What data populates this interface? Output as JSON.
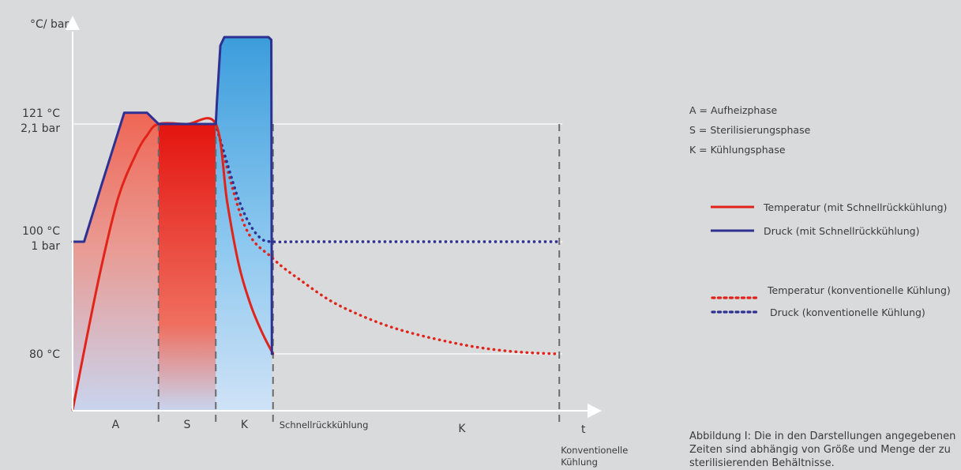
{
  "chart_data": {
    "type": "line",
    "y_axis_label": "°C/ bar",
    "x_axis_label": "t",
    "y_ticks": [
      {
        "value": 121,
        "lines": [
          "121 °C",
          "2,1 bar"
        ]
      },
      {
        "value": 100,
        "lines": [
          "100 °C",
          "1 bar"
        ]
      },
      {
        "value": 80,
        "lines": [
          "80 °C"
        ]
      }
    ],
    "phases": [
      {
        "label": "A",
        "start": 0,
        "end": 15
      },
      {
        "label": "S",
        "start": 15,
        "end": 25
      },
      {
        "label": "K",
        "start": 25,
        "end": 35
      }
    ],
    "phase_labels_extra": [
      {
        "label": "Schnellrückkühlung",
        "at": 35
      },
      {
        "label": "K",
        "at": 68
      }
    ],
    "conventional_end_label": [
      "Konventionelle",
      "Kühlung"
    ],
    "conventional_end_x": 85,
    "series": [
      {
        "name": "Temperatur (mit Schnellrückkühlung)",
        "color": "#e2231a",
        "style": "solid",
        "x": [
          0,
          2,
          5,
          8,
          11,
          13,
          15,
          20,
          25,
          27,
          29,
          31,
          33,
          35
        ],
        "y": [
          70,
          80.5,
          95.5,
          108,
          115.5,
          119,
          121,
          121,
          121,
          107,
          96,
          89,
          84,
          80
        ]
      },
      {
        "name": "Druck (mit Schnellrückkühlung)",
        "color": "#2e3192",
        "style": "solid",
        "x": [
          0,
          2,
          5,
          9,
          13,
          15,
          25,
          25.2,
          25.8,
          26.5,
          34.2,
          34.7,
          34.8,
          34.9
        ],
        "y": [
          100,
          100,
          110,
          123,
          123,
          121,
          121,
          125,
          135,
          136.5,
          136.5,
          136,
          80,
          80
        ]
      },
      {
        "name": "Temperatur (konventionelle Kühlung)",
        "color": "#e2231a",
        "style": "dotted",
        "x": [
          25,
          30,
          35,
          40,
          45,
          50,
          55,
          60,
          65,
          70,
          75,
          80,
          85
        ],
        "y": [
          121,
          103,
          97,
          93,
          89.5,
          87,
          85,
          83.5,
          82.3,
          81.3,
          80.6,
          80.2,
          80
        ]
      },
      {
        "name": "Druck (konventionelle Kühlung)",
        "color": "#2e3192",
        "style": "dotted",
        "x": [
          25,
          27,
          29,
          31,
          33,
          35,
          40,
          50,
          60,
          70,
          80,
          85
        ],
        "y": [
          121,
          114,
          107.5,
          103,
          100.5,
          100,
          100,
          100,
          100,
          100,
          100,
          100
        ]
      }
    ]
  },
  "legend": {
    "phases": [
      "A = Aufheizphase",
      "S = Sterilisierungsphase",
      "K = Kühlungsphase"
    ],
    "series": [
      "Temperatur (mit Schnellrückkühlung)",
      "Druck (mit Schnellrückkühlung)",
      "Temperatur (konventionelle Kühlung)",
      "Druck (konventionelle Kühlung)"
    ]
  },
  "caption": "Abbildung I: Die in den Darstellungen angegebenen Zeiten sind abhängig von Größe und Menge der zu sterilisierenden Behältnisse.",
  "colors": {
    "background": "#d9dadb",
    "temperature": "#e2231a",
    "pressure": "#2e3192",
    "heating_fill": "#ef6b5b",
    "cooling_fill": "#4da3de",
    "grid": "#ffffff",
    "dash": "#6a6a6a"
  }
}
